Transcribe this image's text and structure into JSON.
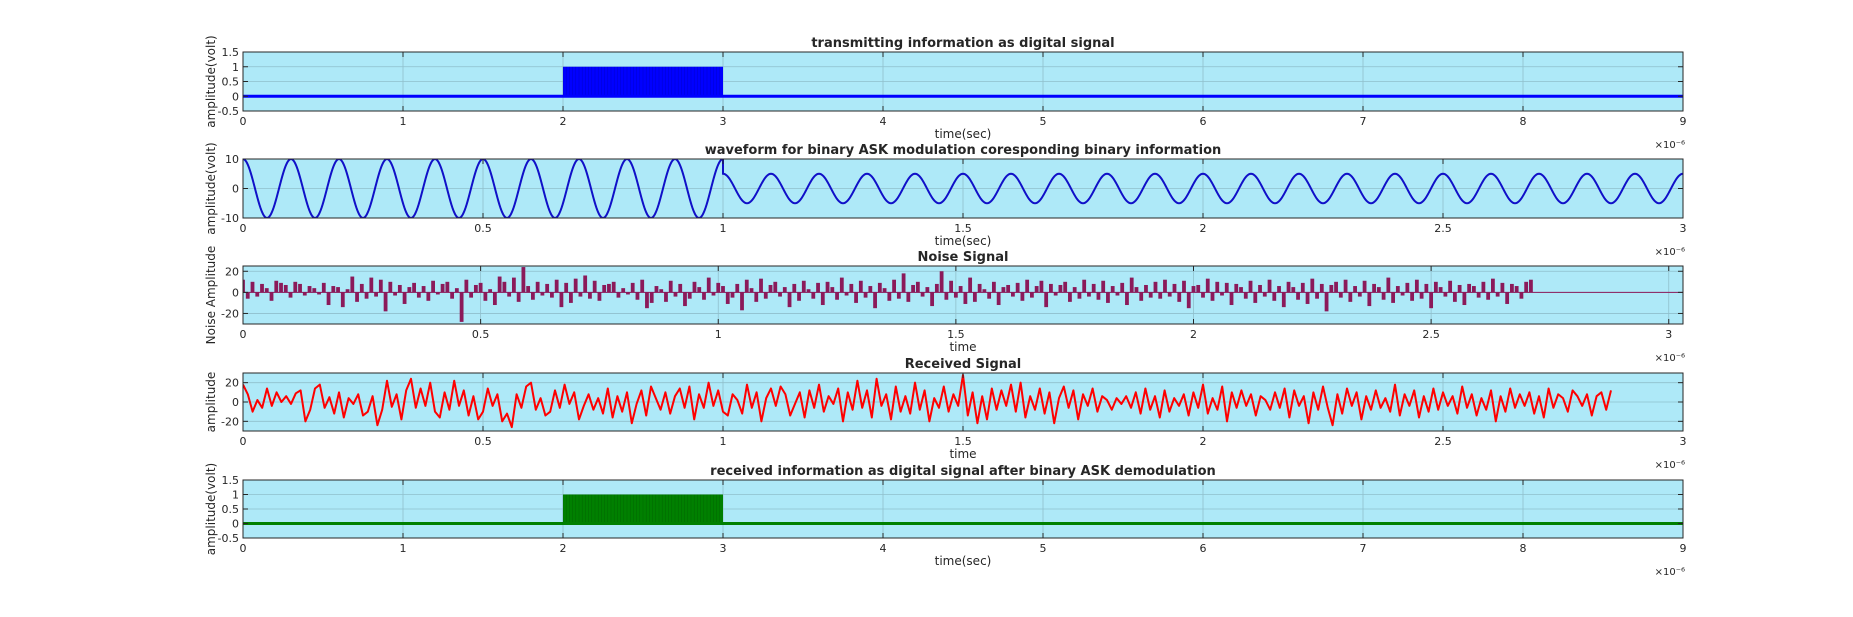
{
  "figure": {
    "background": "#ffffff",
    "axes_background": "#aee9f8"
  },
  "chart_data": [
    {
      "type": "line",
      "title": "transmitting information as digital signal",
      "xlabel": "time(sec)",
      "ylabel": "amplitude(volt)",
      "xlim": [
        0,
        9
      ],
      "ylim": [
        -0.5,
        1.5
      ],
      "x_exponent_label": "×10⁻⁶",
      "xticks": [
        "0",
        "1",
        "2",
        "3",
        "4",
        "5",
        "6",
        "7",
        "8",
        "9"
      ],
      "yticks": [
        "-0.5",
        "0",
        "0.5",
        "1",
        "1.5"
      ],
      "grid": true,
      "color": "#0000ff",
      "series": [
        {
          "signal": "digital",
          "segments": [
            {
              "x_start": 0,
              "x_end": 2,
              "level": 0
            },
            {
              "x_start": 2,
              "x_end": 3,
              "level": 1,
              "rapid_sampling": true
            },
            {
              "x_start": 3,
              "x_end": 9,
              "level": 0
            }
          ]
        }
      ]
    },
    {
      "type": "line",
      "title": "waveform for binary ASK modulation coresponding binary information",
      "xlabel": "time(sec)",
      "ylabel": "amplitude(volt)",
      "xlim": [
        0,
        3
      ],
      "ylim": [
        -10,
        10
      ],
      "x_exponent_label": "×10⁻⁶",
      "xticks": [
        "0",
        "0.5",
        "1",
        "1.5",
        "2",
        "2.5",
        "3"
      ],
      "yticks": [
        "-10",
        "0",
        "10"
      ],
      "grid": true,
      "color": "#1010c8",
      "series": [
        {
          "signal": "ask",
          "cycles_per_unit": 10,
          "segments": [
            {
              "x_start": 0,
              "x_end": 1,
              "amplitude": 10
            },
            {
              "x_start": 1,
              "x_end": 3,
              "amplitude": 5
            }
          ]
        }
      ]
    },
    {
      "type": "bar",
      "title": "Noise Signal",
      "xlabel": "time",
      "ylabel": "Noise Amplitude",
      "xlim": [
        0,
        3.03
      ],
      "ylim": [
        -30,
        25
      ],
      "x_exponent_label": "×10⁻⁶",
      "xticks": [
        "0",
        "0.5",
        "1",
        "1.5",
        "2",
        "2.5",
        "3"
      ],
      "ytick_values": [
        -20,
        0,
        20
      ],
      "yticks": [
        "-20",
        "0",
        "20"
      ],
      "grid": true,
      "color": "#8b1a5a",
      "bar_spacing": 0.01,
      "values": [
        12,
        -6,
        10,
        -4,
        8,
        4,
        -8,
        11,
        9,
        7,
        -5,
        10,
        8,
        -3,
        6,
        4,
        -2,
        9,
        -12,
        6,
        5,
        -14,
        3,
        15,
        -9,
        8,
        -6,
        14,
        -4,
        12,
        -18,
        10,
        -3,
        7,
        -11,
        5,
        9,
        -5,
        6,
        -8,
        11,
        -2,
        8,
        10,
        -6,
        4,
        -28,
        12,
        -5,
        7,
        9,
        -8,
        3,
        -12,
        15,
        10,
        -4,
        14,
        -9,
        24,
        6,
        -7,
        10,
        -3,
        8,
        -5,
        12,
        -14,
        9,
        -10,
        13,
        -4,
        16,
        -6,
        11,
        -8,
        7,
        8,
        10,
        -5,
        4,
        -2,
        9,
        -7,
        12,
        -15,
        -10,
        6,
        3,
        -9,
        11,
        -4,
        8,
        -13,
        -6,
        10,
        5,
        -7,
        14,
        -3,
        9,
        6,
        -11,
        -5,
        8,
        -17,
        12,
        4,
        -9,
        13,
        -6,
        7,
        10,
        -4,
        5,
        -14,
        8,
        -8,
        11,
        3,
        -6,
        9,
        -12,
        10,
        5,
        -7,
        14,
        -3,
        8,
        -10,
        11,
        -5,
        6,
        -15,
        9,
        4,
        -8,
        12,
        -6,
        18,
        -9,
        7,
        10,
        -4,
        5,
        -13,
        8,
        20,
        -7,
        11,
        -5,
        6,
        -11,
        14,
        -9,
        8,
        3,
        -6,
        10,
        -12,
        5,
        7,
        -4,
        9,
        -8,
        12,
        -5,
        6,
        11,
        -14,
        8,
        -3,
        7,
        10,
        -9,
        5,
        -6,
        12,
        -4,
        8,
        -7,
        11,
        -10,
        6,
        -3,
        9,
        -12,
        14,
        5,
        -8,
        7,
        -5,
        10,
        -6,
        12,
        -4,
        8,
        -9,
        11,
        -15,
        6,
        7,
        -5,
        13,
        -8,
        10,
        -3,
        9,
        -12,
        8,
        5,
        -6,
        11,
        -10,
        7,
        -4,
        12,
        -8,
        6,
        -14,
        10,
        5,
        -7,
        9,
        -11,
        13,
        -6,
        8,
        -18,
        7,
        10,
        -5,
        12,
        -9,
        6,
        -4,
        11,
        -13,
        8,
        5,
        -7,
        14,
        -10,
        6,
        -3,
        9,
        -8,
        12,
        -6,
        8,
        -15,
        10,
        5,
        -4,
        11,
        -9,
        7,
        -12,
        8,
        6,
        -5,
        10,
        -7,
        13,
        -4,
        9,
        -11,
        8,
        6,
        -6,
        10,
        12
      ]
    },
    {
      "type": "line",
      "title": "Received Signal",
      "xlabel": "time",
      "ylabel": "amplitude",
      "xlim": [
        0,
        3
      ],
      "ylim": [
        -30,
        30
      ],
      "x_exponent_label": "×10⁻⁶",
      "xticks": [
        "0",
        "0.5",
        "1",
        "1.5",
        "2",
        "2.5",
        "3"
      ],
      "ytick_values": [
        -20,
        0,
        20
      ],
      "yticks": [
        "-20",
        "0",
        "20"
      ],
      "grid": true,
      "color": "#ff0000",
      "x_step": 0.01,
      "values": [
        18,
        8,
        -10,
        2,
        -6,
        14,
        -4,
        10,
        0,
        6,
        -2,
        9,
        12,
        -20,
        -8,
        14,
        18,
        -6,
        5,
        -12,
        10,
        -16,
        4,
        -2,
        8,
        -14,
        -10,
        6,
        -24,
        -8,
        22,
        -5,
        8,
        -18,
        12,
        24,
        -6,
        14,
        -4,
        20,
        -10,
        -16,
        10,
        -8,
        22,
        -4,
        12,
        -14,
        6,
        -18,
        -10,
        14,
        -4,
        8,
        -20,
        -12,
        -26,
        8,
        -6,
        16,
        20,
        -8,
        4,
        -14,
        -10,
        12,
        -6,
        18,
        -2,
        10,
        -18,
        -4,
        8,
        -8,
        4,
        -12,
        14,
        -16,
        6,
        -10,
        10,
        -22,
        -2,
        12,
        -14,
        16,
        4,
        -8,
        10,
        -12,
        6,
        14,
        -6,
        16,
        -18,
        8,
        -6,
        20,
        -4,
        12,
        -10,
        -14,
        8,
        2,
        -12,
        18,
        -6,
        10,
        -20,
        4,
        14,
        -4,
        16,
        8,
        -14,
        -2,
        10,
        -16,
        12,
        -6,
        18,
        -10,
        6,
        -2,
        14,
        -20,
        10,
        -8,
        22,
        -6,
        12,
        -16,
        24,
        -4,
        8,
        -18,
        16,
        -10,
        6,
        -12,
        20,
        -8,
        12,
        -20,
        4,
        -6,
        16,
        -10,
        8,
        -4,
        28,
        -14,
        10,
        -22,
        6,
        -18,
        14,
        -8,
        12,
        -4,
        18,
        -10,
        20,
        -16,
        6,
        -8,
        14,
        -12,
        10,
        -22,
        4,
        16,
        -6,
        12,
        -18,
        8,
        -4,
        14,
        -10,
        6,
        2,
        -8,
        4,
        -2,
        6,
        -6,
        10,
        -12,
        14,
        -8,
        6,
        -16,
        12,
        -10,
        4,
        -4,
        8,
        -14,
        10,
        -6,
        18,
        -12,
        4,
        -8,
        16,
        -20,
        10,
        -6,
        12,
        -4,
        8,
        -14,
        6,
        2,
        -8,
        10,
        -6,
        14,
        -16,
        12,
        -4,
        6,
        -22,
        10,
        -8,
        16,
        -6,
        -24,
        8,
        -12,
        14,
        -4,
        10,
        -18,
        6,
        -8,
        12,
        -6,
        4,
        -10,
        18,
        -14,
        8,
        -4,
        12,
        -16,
        6,
        -10,
        14,
        -8,
        10,
        -4,
        6,
        -12,
        16,
        -6,
        8,
        -14,
        4,
        -8,
        12,
        -20,
        6,
        -10,
        14,
        -6,
        8,
        -4,
        10,
        -12,
        6,
        -16,
        14,
        -6,
        8,
        4,
        -10,
        12,
        6,
        -4,
        8,
        -14,
        6,
        10,
        -8,
        12
      ]
    },
    {
      "type": "line",
      "title": "received information as digital signal after binary ASK demodulation",
      "xlabel": "time(sec)",
      "ylabel": "amplitude(volt)",
      "xlim": [
        0,
        9
      ],
      "ylim": [
        -0.5,
        1.5
      ],
      "x_exponent_label": "×10⁻⁶",
      "xticks": [
        "0",
        "1",
        "2",
        "3",
        "4",
        "5",
        "6",
        "7",
        "8",
        "9"
      ],
      "yticks": [
        "-0.5",
        "0",
        "0.5",
        "1",
        "1.5"
      ],
      "grid": true,
      "color": "#008000",
      "series": [
        {
          "signal": "digital",
          "segments": [
            {
              "x_start": 0,
              "x_end": 2,
              "level": 0
            },
            {
              "x_start": 2,
              "x_end": 3,
              "level": 1,
              "rapid_sampling": true
            },
            {
              "x_start": 3,
              "x_end": 9,
              "level": 0
            }
          ]
        }
      ]
    }
  ]
}
